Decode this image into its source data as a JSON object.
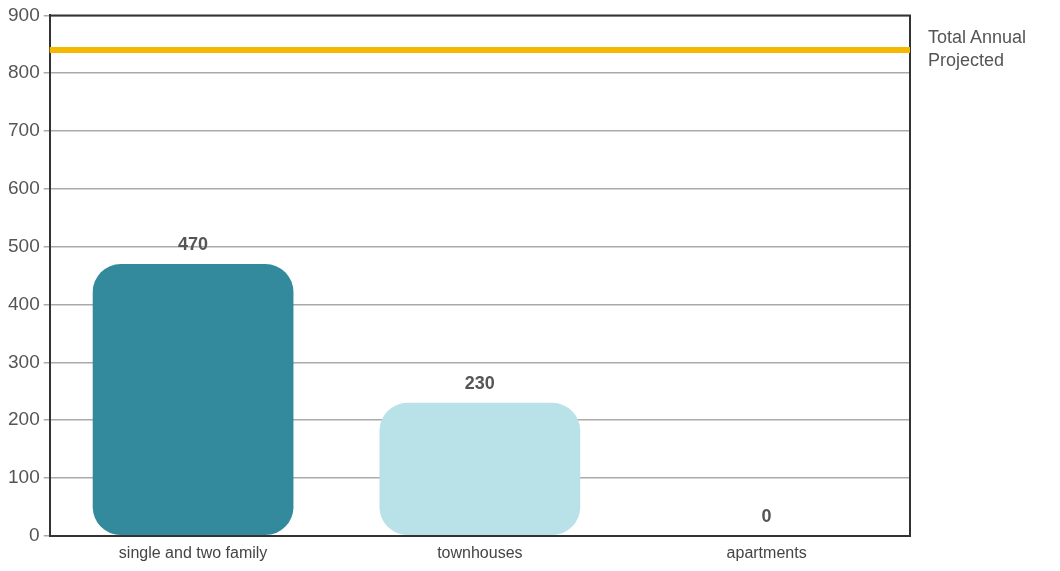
{
  "chart_data": {
    "type": "bar",
    "categories": [
      "single and two family",
      "townhouses",
      "apartments"
    ],
    "values": [
      470,
      230,
      0
    ],
    "colors": [
      "#338a9c",
      "#b9e1e8",
      "#9fd3dd"
    ],
    "ylim": [
      0,
      900
    ],
    "yticks": [
      0,
      100,
      200,
      300,
      400,
      500,
      600,
      700,
      800,
      900
    ],
    "grid": "y",
    "data_labels": true,
    "ref_lines": [
      {
        "axis": "y",
        "value": 840,
        "label": "Total Annual Projected",
        "color": "#f5b800"
      }
    ]
  }
}
